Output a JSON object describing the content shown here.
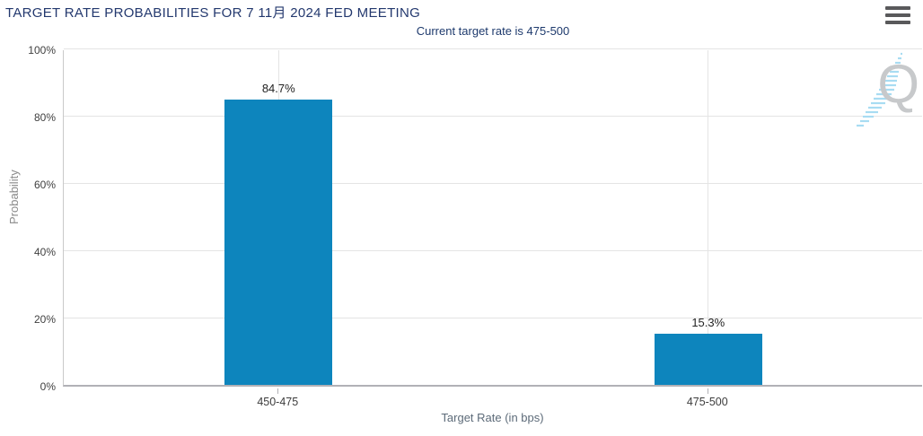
{
  "header": {
    "title": "TARGET RATE PROBABILITIES FOR 7 11月 2024 FED MEETING",
    "subtitle": "Current target rate is 475-500"
  },
  "icons": {
    "menu": "hamburger-icon",
    "watermark_letter": "Q"
  },
  "chart_data": {
    "type": "bar",
    "categories": [
      "450-475",
      "475-500"
    ],
    "values": [
      84.7,
      15.3
    ],
    "value_labels": [
      "84.7%",
      "15.3%"
    ],
    "title": "TARGET RATE PROBABILITIES FOR 7 11月 2024 FED MEETING",
    "subtitle": "Current target rate is 475-500",
    "xlabel": "Target Rate (in bps)",
    "ylabel": "Probability",
    "ylim": [
      0,
      100
    ],
    "yticks": [
      0,
      20,
      40,
      60,
      80,
      100
    ],
    "ytick_labels": [
      "0%",
      "20%",
      "40%",
      "60%",
      "80%",
      "100%"
    ],
    "grid": true,
    "legend": false,
    "bar_color": "#0d85bd",
    "grid_color": "#e4e4e4",
    "axis_color": "#b1b1b6"
  }
}
